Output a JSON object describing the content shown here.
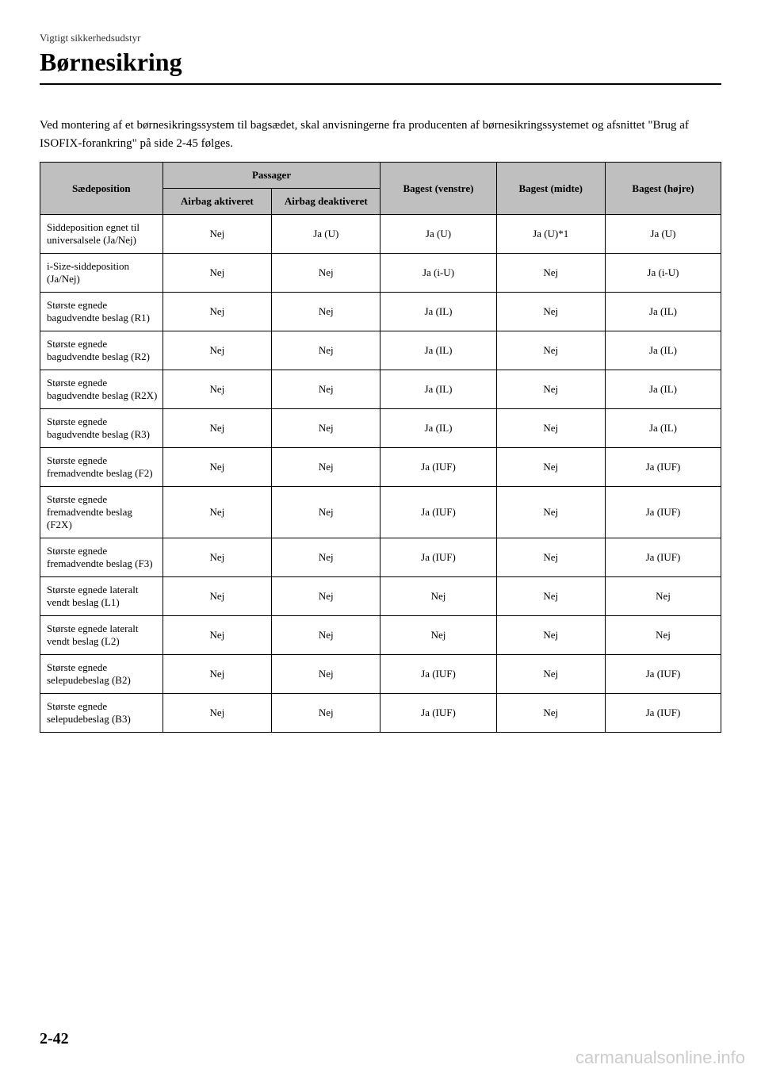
{
  "header": {
    "subtitle": "Vigtigt sikkerhedsudstyr",
    "title": "Børnesikring"
  },
  "intro": "Ved montering af et børnesikringssystem til bagsædet, skal anvisningerne fra producenten af børnesikringssystemet og afsnittet \"Brug af ISOFIX-forankring\" på side 2-45 følges.",
  "table": {
    "headers": {
      "seatPosition": "Sædeposition",
      "passenger": "Passager",
      "airbagActive": "Airbag aktiveret",
      "airbagDeactive": "Airbag deaktiveret",
      "rearLeft": "Bagest (venstre)",
      "rearMiddle": "Bagest (midte)",
      "rearRight": "Bagest (højre)"
    },
    "rows": [
      {
        "label": "Siddeposition egnet til universalsele (Ja/Nej)",
        "c1": "Nej",
        "c2": "Ja (U)",
        "c3": "Ja (U)",
        "c4": "Ja (U)*1",
        "c5": "Ja (U)"
      },
      {
        "label": "i-Size-siddeposition (Ja/Nej)",
        "c1": "Nej",
        "c2": "Nej",
        "c3": "Ja (i-U)",
        "c4": "Nej",
        "c5": "Ja (i-U)"
      },
      {
        "label": "Største egnede bagudvendte beslag (R1)",
        "c1": "Nej",
        "c2": "Nej",
        "c3": "Ja (IL)",
        "c4": "Nej",
        "c5": "Ja (IL)"
      },
      {
        "label": "Største egnede bagudvendte beslag (R2)",
        "c1": "Nej",
        "c2": "Nej",
        "c3": "Ja (IL)",
        "c4": "Nej",
        "c5": "Ja (IL)"
      },
      {
        "label": "Største egnede bagudvendte beslag (R2X)",
        "c1": "Nej",
        "c2": "Nej",
        "c3": "Ja (IL)",
        "c4": "Nej",
        "c5": "Ja (IL)"
      },
      {
        "label": "Største egnede bagudvendte beslag (R3)",
        "c1": "Nej",
        "c2": "Nej",
        "c3": "Ja (IL)",
        "c4": "Nej",
        "c5": "Ja (IL)"
      },
      {
        "label": "Største egnede fremadvendte beslag (F2)",
        "c1": "Nej",
        "c2": "Nej",
        "c3": "Ja (IUF)",
        "c4": "Nej",
        "c5": "Ja (IUF)"
      },
      {
        "label": "Største egnede fremadvendte beslag (F2X)",
        "c1": "Nej",
        "c2": "Nej",
        "c3": "Ja (IUF)",
        "c4": "Nej",
        "c5": "Ja (IUF)"
      },
      {
        "label": "Største egnede fremadvendte beslag (F3)",
        "c1": "Nej",
        "c2": "Nej",
        "c3": "Ja (IUF)",
        "c4": "Nej",
        "c5": "Ja (IUF)"
      },
      {
        "label": "Største egnede lateralt vendt beslag (L1)",
        "c1": "Nej",
        "c2": "Nej",
        "c3": "Nej",
        "c4": "Nej",
        "c5": "Nej"
      },
      {
        "label": "Største egnede lateralt vendt beslag (L2)",
        "c1": "Nej",
        "c2": "Nej",
        "c3": "Nej",
        "c4": "Nej",
        "c5": "Nej"
      },
      {
        "label": "Største egnede selepudebeslag (B2)",
        "c1": "Nej",
        "c2": "Nej",
        "c3": "Ja (IUF)",
        "c4": "Nej",
        "c5": "Ja (IUF)"
      },
      {
        "label": "Største egnede selepudebeslag (B3)",
        "c1": "Nej",
        "c2": "Nej",
        "c3": "Ja (IUF)",
        "c4": "Nej",
        "c5": "Ja (IUF)"
      }
    ],
    "col_widths": [
      "18%",
      "16%",
      "16%",
      "17%",
      "16%",
      "17%"
    ]
  },
  "pageNumber": "2-42",
  "watermark": "carmanualsonline.info",
  "colors": {
    "headerBg": "#bfbfbf",
    "border": "#000000",
    "text": "#000000",
    "watermark": "#cccccc"
  }
}
